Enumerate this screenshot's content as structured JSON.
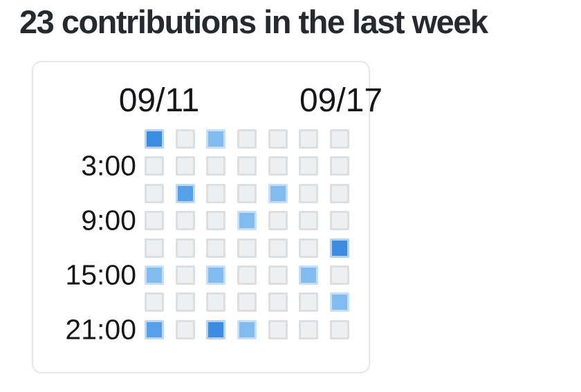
{
  "title": "23 contributions in the last week",
  "card": {
    "date_labels": [
      {
        "text": "09/11"
      },
      {
        "text": "09/17"
      }
    ],
    "time_labels": [
      {
        "text": "3:00"
      },
      {
        "text": "9:00"
      },
      {
        "text": "15:00"
      },
      {
        "text": "21:00"
      }
    ]
  },
  "chart_data": {
    "type": "heatmap",
    "title": "23 contributions in the last week",
    "total_contributions": 23,
    "x_axis": {
      "unit": "day",
      "start_label": "09/11",
      "end_label": "09/17",
      "columns": 7
    },
    "y_axis": {
      "unit": "hour",
      "tick_labels": [
        "3:00",
        "9:00",
        "15:00",
        "21:00"
      ],
      "rows": 8,
      "hours_per_row": 3
    },
    "legend": "none",
    "grid_lines": false,
    "levels": {
      "0": {
        "fill": "#edeff1",
        "border": "#dcdfe2"
      },
      "1": {
        "fill": "#82bbed",
        "border": "#c6def7"
      },
      "2": {
        "fill": "#57a0e7",
        "border": "#bcd8f6"
      },
      "3": {
        "fill": "#3e8ce2",
        "border": "#b3d2f4"
      }
    },
    "cells": [
      [
        3,
        0,
        1,
        0,
        0,
        0,
        0
      ],
      [
        0,
        0,
        0,
        0,
        0,
        0,
        0
      ],
      [
        0,
        2,
        0,
        0,
        1,
        0,
        0
      ],
      [
        0,
        0,
        0,
        1,
        0,
        0,
        0
      ],
      [
        0,
        0,
        0,
        0,
        0,
        0,
        3
      ],
      [
        1,
        0,
        1,
        0,
        0,
        1,
        0
      ],
      [
        0,
        0,
        0,
        0,
        0,
        0,
        1
      ],
      [
        2,
        0,
        3,
        1,
        0,
        0,
        0
      ]
    ]
  },
  "colors": {
    "heading_text": "#26292e",
    "label_text": "#141619",
    "card_border": "#e5e7ea",
    "background": "#ffffff"
  }
}
